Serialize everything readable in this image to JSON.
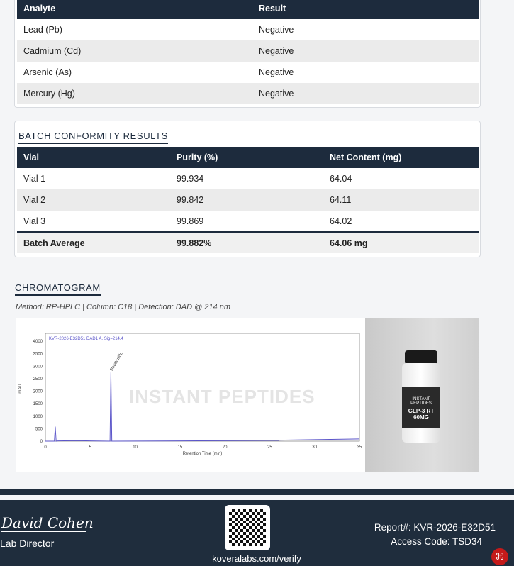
{
  "heavy_metals": {
    "headers": [
      "Analyte",
      "Result"
    ],
    "rows": [
      [
        "Lead (Pb)",
        "Negative"
      ],
      [
        "Cadmium (Cd)",
        "Negative"
      ],
      [
        "Arsenic (As)",
        "Negative"
      ],
      [
        "Mercury (Hg)",
        "Negative"
      ]
    ]
  },
  "batch": {
    "title": "BATCH CONFORMITY RESULTS",
    "headers": [
      "Vial",
      "Purity (%)",
      "Net Content (mg)"
    ],
    "rows": [
      [
        "Vial 1",
        "99.934",
        "64.04"
      ],
      [
        "Vial 2",
        "99.842",
        "64.11"
      ],
      [
        "Vial 3",
        "99.869",
        "64.02"
      ]
    ],
    "average": [
      "Batch Average",
      "99.882%",
      "64.06 mg"
    ]
  },
  "chromatogram": {
    "title": "CHROMATOGRAM",
    "method": "Method: RP-HPLC | Column: C18 | Detection: DAD @ 214 nm",
    "watermark": "INSTANT PEPTIDES"
  },
  "chart_data": {
    "type": "line",
    "title": "KVR-2026-E32D51 DAD1 A, Sig=214.4",
    "xlabel": "Retention Time (min)",
    "ylabel": "mAU",
    "xlim": [
      0,
      35
    ],
    "ylim": [
      0,
      4200
    ],
    "xticks": [
      0,
      5,
      10,
      15,
      20,
      25,
      30,
      35
    ],
    "yticks": [
      0,
      500,
      1000,
      1500,
      2000,
      2500,
      3000,
      3500,
      4000
    ],
    "peaks": [
      {
        "x": 1.1,
        "y": 580
      },
      {
        "x": 7.3,
        "y": 2750,
        "label": "Retatrutide"
      }
    ],
    "series": [
      {
        "x": [
          0,
          1.0,
          1.1,
          1.2,
          1.4,
          3.5,
          7.2,
          7.3,
          7.4,
          15,
          26,
          26.1,
          35
        ],
        "y": [
          0,
          0,
          580,
          0,
          10,
          20,
          0,
          2750,
          0,
          10,
          30,
          40,
          90
        ]
      }
    ],
    "color": "#5b55c9"
  },
  "vial": {
    "brand": "INSTANT PEPTIDES",
    "product": "GLP-3 RT",
    "dose": "60MG"
  },
  "footer": {
    "signature": "David Cohen",
    "signer_title": "Lab Director",
    "verify_url": "koveralabs.com/verify",
    "report": "Report#: KVR-2026-E32D51",
    "access": "Access Code: TSD34"
  }
}
